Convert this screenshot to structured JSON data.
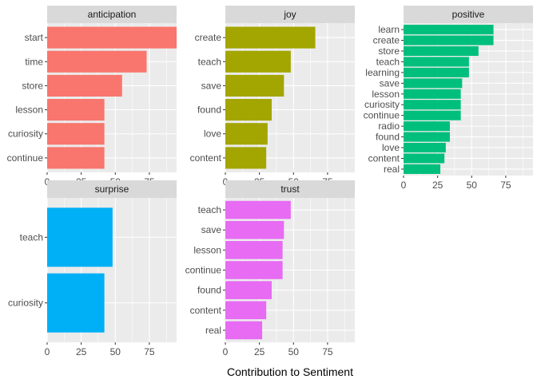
{
  "chart_data": {
    "type": "bar",
    "orientation": "horizontal",
    "xlabel": "Contribution to Sentiment",
    "ylabel": "",
    "grid": true,
    "xlim": [
      0,
      95
    ],
    "x_ticks": [
      0,
      25,
      50,
      75
    ],
    "facets": [
      {
        "name": "anticipation",
        "color": "#F8766D",
        "categories": [
          "start",
          "time",
          "store",
          "lesson",
          "curiosity",
          "continue"
        ],
        "values": [
          95,
          73,
          55,
          42,
          42,
          42
        ]
      },
      {
        "name": "joy",
        "color": "#A3A500",
        "categories": [
          "create",
          "teach",
          "save",
          "found",
          "love",
          "content"
        ],
        "values": [
          66,
          48,
          43,
          34,
          31,
          30
        ]
      },
      {
        "name": "positive",
        "color": "#00BF7D",
        "categories": [
          "learn",
          "create",
          "store",
          "teach",
          "learning",
          "save",
          "lesson",
          "curiosity",
          "continue",
          "radio",
          "found",
          "love",
          "content",
          "real"
        ],
        "values": [
          66,
          66,
          55,
          48,
          48,
          43,
          42,
          42,
          42,
          34,
          34,
          31,
          30,
          27
        ]
      },
      {
        "name": "surprise",
        "color": "#00B0F6",
        "categories": [
          "teach",
          "curiosity"
        ],
        "values": [
          48,
          42
        ]
      },
      {
        "name": "trust",
        "color": "#E76BF3",
        "categories": [
          "teach",
          "save",
          "lesson",
          "continue",
          "found",
          "content",
          "real"
        ],
        "values": [
          48,
          43,
          42,
          42,
          34,
          30,
          27
        ]
      }
    ]
  }
}
